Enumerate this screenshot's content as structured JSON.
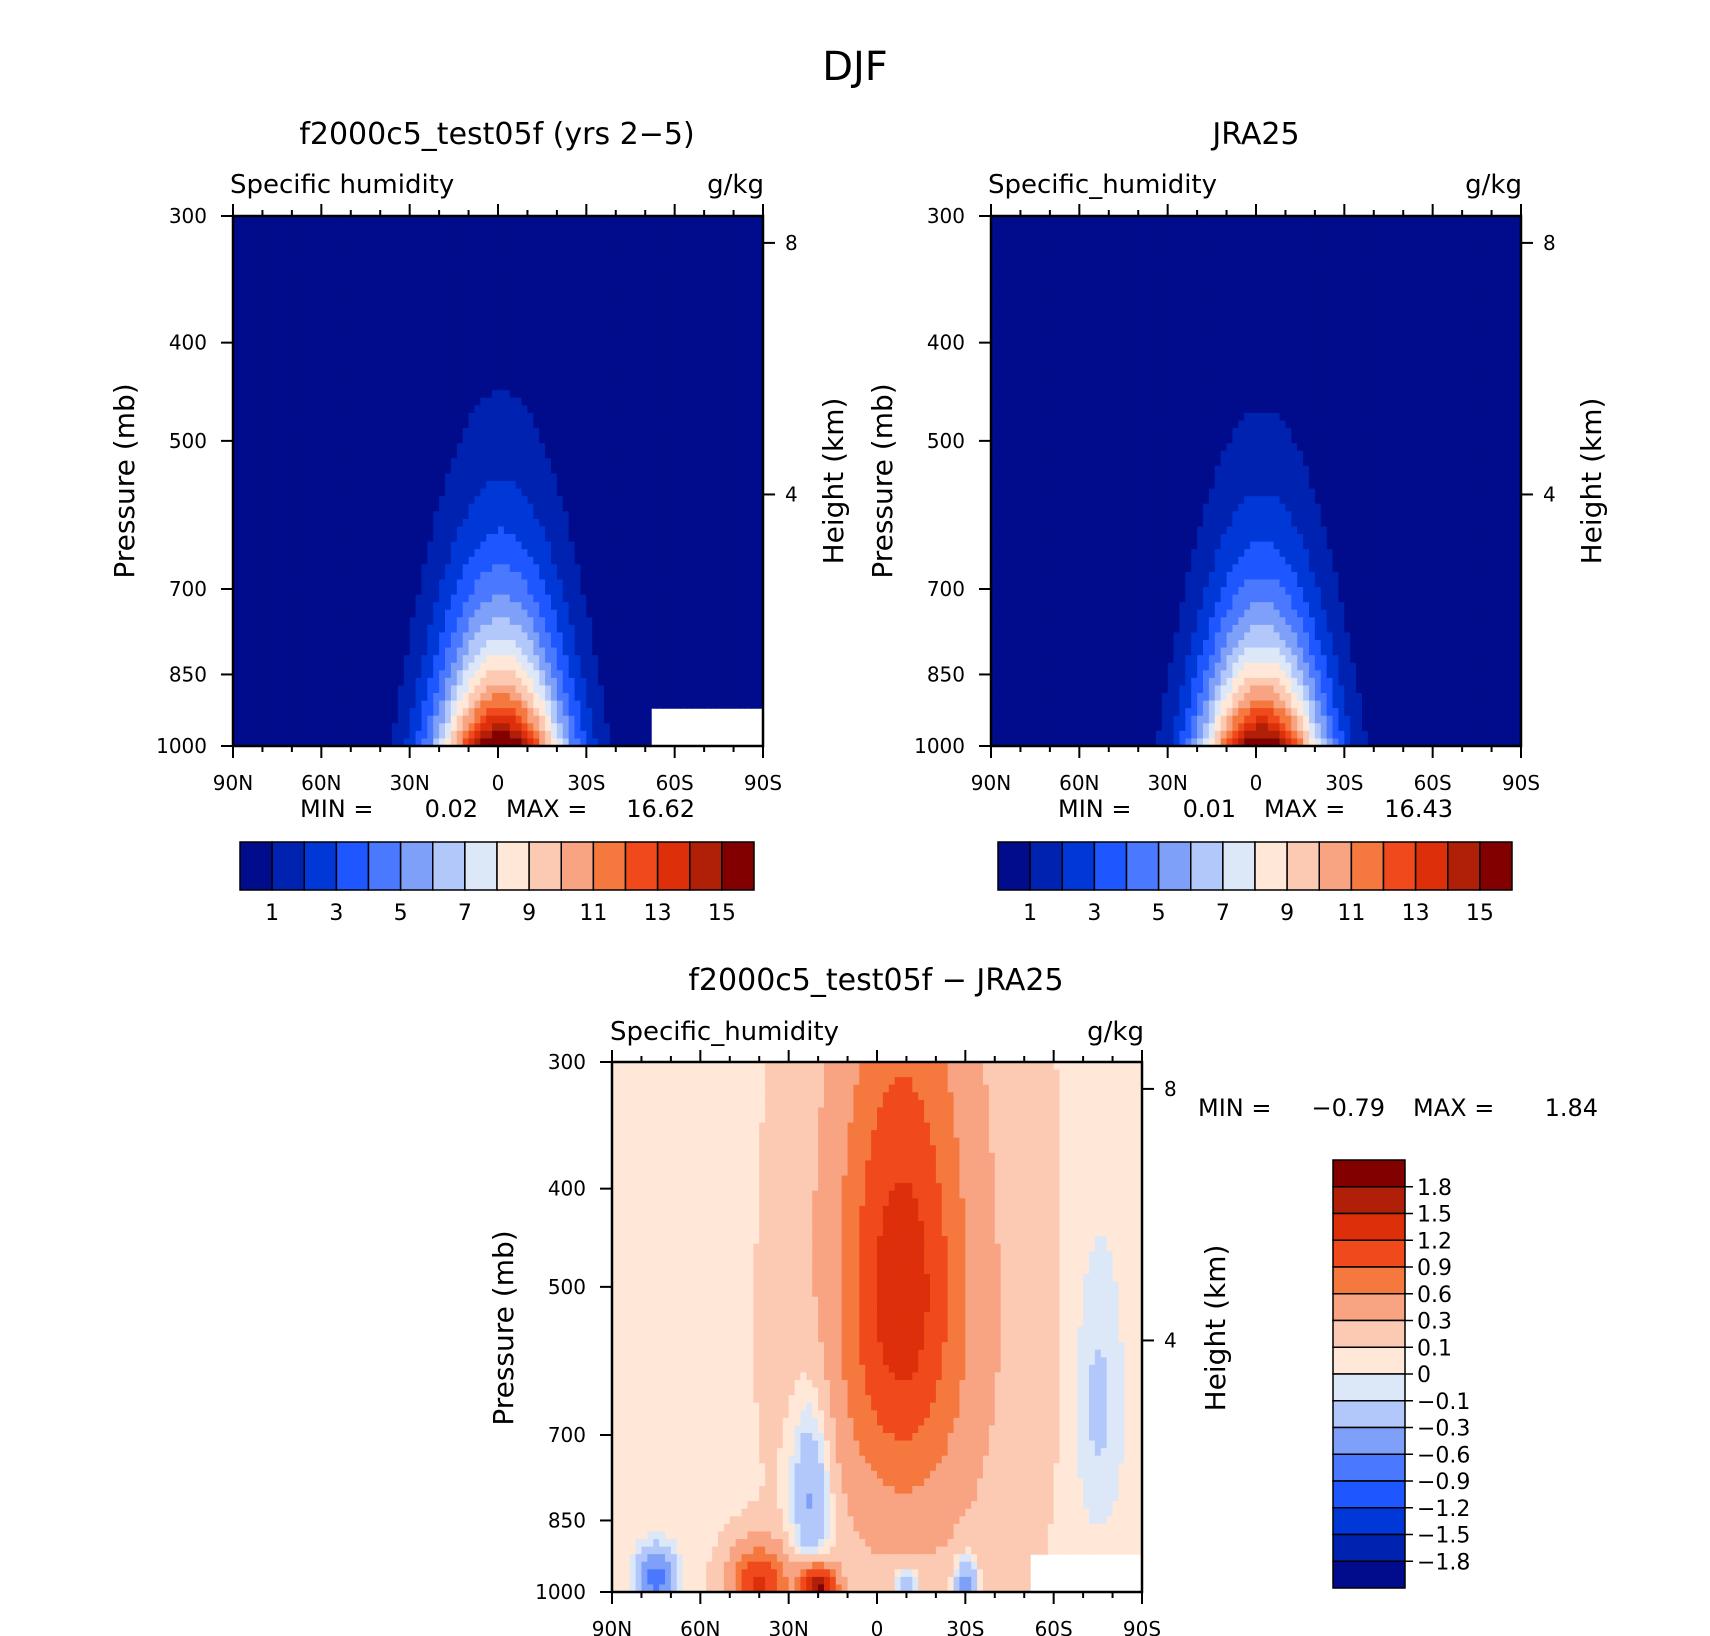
{
  "page_title": "DJF",
  "chart_data": [
    {
      "type": "contour",
      "title": "f2000c5_test05f (yrs 2−5)",
      "left_label": "Specific humidity",
      "units": "g/kg",
      "ylabel": "Pressure (mb)",
      "y2label": "Height (km)",
      "x_ticks": [
        "90N",
        "60N",
        "30N",
        "0",
        "30S",
        "60S",
        "90S"
      ],
      "y_ticks": [
        "300",
        "400",
        "500",
        "700",
        "850",
        "1000"
      ],
      "y2_ticks": [
        "8",
        "4"
      ],
      "ylim": [
        1000,
        300
      ],
      "min_label": "MIN =",
      "min_value": "0.02",
      "max_label": "MAX =",
      "max_value": "16.62",
      "field": {
        "peak": 16.62,
        "center_lat": -1,
        "width_lat": 28,
        "scale_height_km": 2.0,
        "masked": [
          {
            "lat_from": -53,
            "lat_to": -90,
            "p_from": 910
          }
        ]
      },
      "colorbar": {
        "orientation": "horizontal",
        "labels": [
          "1",
          "3",
          "5",
          "7",
          "9",
          "11",
          "13",
          "15"
        ],
        "levels": [
          1,
          2,
          3,
          4,
          5,
          6,
          7,
          8,
          9,
          10,
          11,
          12,
          13,
          14,
          15
        ],
        "colors": [
          "#000C8B",
          "#0022B0",
          "#0038D8",
          "#1E56FF",
          "#4A78FF",
          "#7EA0F8",
          "#B3C8FA",
          "#DCE8F8",
          "#FFE8D8",
          "#FCCAB3",
          "#F8A482",
          "#F5783E",
          "#F04A1C",
          "#DC2F0A",
          "#B01F08",
          "#820000"
        ]
      }
    },
    {
      "type": "contour",
      "title": "JRA25",
      "left_label": "Specific_humidity",
      "units": "g/kg",
      "ylabel": "Pressure (mb)",
      "y2label": "Height (km)",
      "x_ticks": [
        "90N",
        "60N",
        "30N",
        "0",
        "30S",
        "60S",
        "90S"
      ],
      "y_ticks": [
        "300",
        "400",
        "500",
        "700",
        "850",
        "1000"
      ],
      "y2_ticks": [
        "8",
        "4"
      ],
      "ylim": [
        1000,
        300
      ],
      "min_label": "MIN =",
      "min_value": "0.01",
      "max_label": "MAX =",
      "max_value": "16.43",
      "field": {
        "peak": 16.43,
        "center_lat": -2,
        "width_lat": 27,
        "scale_height_km": 1.9,
        "masked": []
      },
      "colorbar": {
        "orientation": "horizontal",
        "labels": [
          "1",
          "3",
          "5",
          "7",
          "9",
          "11",
          "13",
          "15"
        ],
        "levels": [
          1,
          2,
          3,
          4,
          5,
          6,
          7,
          8,
          9,
          10,
          11,
          12,
          13,
          14,
          15
        ],
        "colors": [
          "#000C8B",
          "#0022B0",
          "#0038D8",
          "#1E56FF",
          "#4A78FF",
          "#7EA0F8",
          "#B3C8FA",
          "#DCE8F8",
          "#FFE8D8",
          "#FCCAB3",
          "#F8A482",
          "#F5783E",
          "#F04A1C",
          "#DC2F0A",
          "#B01F08",
          "#820000"
        ]
      }
    },
    {
      "type": "contour",
      "title": "f2000c5_test05f − JRA25",
      "left_label": "Specific_humidity",
      "units": "g/kg",
      "ylabel": "Pressure (mb)",
      "y2label": "Height (km)",
      "x_ticks": [
        "90N",
        "60N",
        "30N",
        "0",
        "30S",
        "60S",
        "90S"
      ],
      "y_ticks": [
        "300",
        "400",
        "500",
        "700",
        "850",
        "1000"
      ],
      "y2_ticks": [
        "8",
        "4"
      ],
      "ylim": [
        1000,
        300
      ],
      "min_label": "MIN =",
      "min_value": "−0.79",
      "max_label": "MAX =",
      "max_value": "1.84",
      "field": {
        "features": [
          {
            "lat": -8,
            "p": 500,
            "lat_w": 20,
            "p_w": 260,
            "amp": 1.0
          },
          {
            "lat": -12,
            "p": 560,
            "lat_w": 38,
            "p_w": 480,
            "amp": 0.35
          },
          {
            "lat": 40,
            "p": 980,
            "lat_w": 10,
            "p_w": 80,
            "amp": 1.2
          },
          {
            "lat": 20,
            "p": 990,
            "lat_w": 6,
            "p_w": 50,
            "amp": 1.84
          },
          {
            "lat": 22,
            "p": 800,
            "lat_w": 7,
            "p_w": 180,
            "amp": -0.5
          },
          {
            "lat": 75,
            "p": 970,
            "lat_w": 6,
            "p_w": 60,
            "amp": -0.79
          },
          {
            "lat": -30,
            "p": 980,
            "lat_w": 4,
            "p_w": 60,
            "amp": -0.6
          },
          {
            "lat": -10,
            "p": 985,
            "lat_w": 4,
            "p_w": 40,
            "amp": -0.5
          },
          {
            "lat": -75,
            "p": 650,
            "lat_w": 8,
            "p_w": 200,
            "amp": -0.2
          }
        ],
        "base": 0.05,
        "masked": [
          {
            "lat_from": -53,
            "lat_to": -90,
            "p_from": 910
          }
        ]
      },
      "colorbar": {
        "orientation": "vertical",
        "labels": [
          "1.8",
          "1.5",
          "1.2",
          "0.9",
          "0.6",
          "0.3",
          "0.1",
          "0",
          "−0.1",
          "−0.3",
          "−0.6",
          "−0.9",
          "−1.2",
          "−1.5",
          "−1.8"
        ],
        "levels": [
          -1.8,
          -1.5,
          -1.2,
          -0.9,
          -0.6,
          -0.3,
          -0.1,
          0,
          0.1,
          0.3,
          0.6,
          0.9,
          1.2,
          1.5,
          1.8
        ],
        "colors": [
          "#000C8B",
          "#0022B0",
          "#0038D8",
          "#1E56FF",
          "#4A78FF",
          "#7EA0F8",
          "#B3C8FA",
          "#DCE8F8",
          "#FFE8D8",
          "#FCCAB3",
          "#F8A482",
          "#F5783E",
          "#F04A1C",
          "#DC2F0A",
          "#B01F08",
          "#820000"
        ]
      }
    }
  ]
}
